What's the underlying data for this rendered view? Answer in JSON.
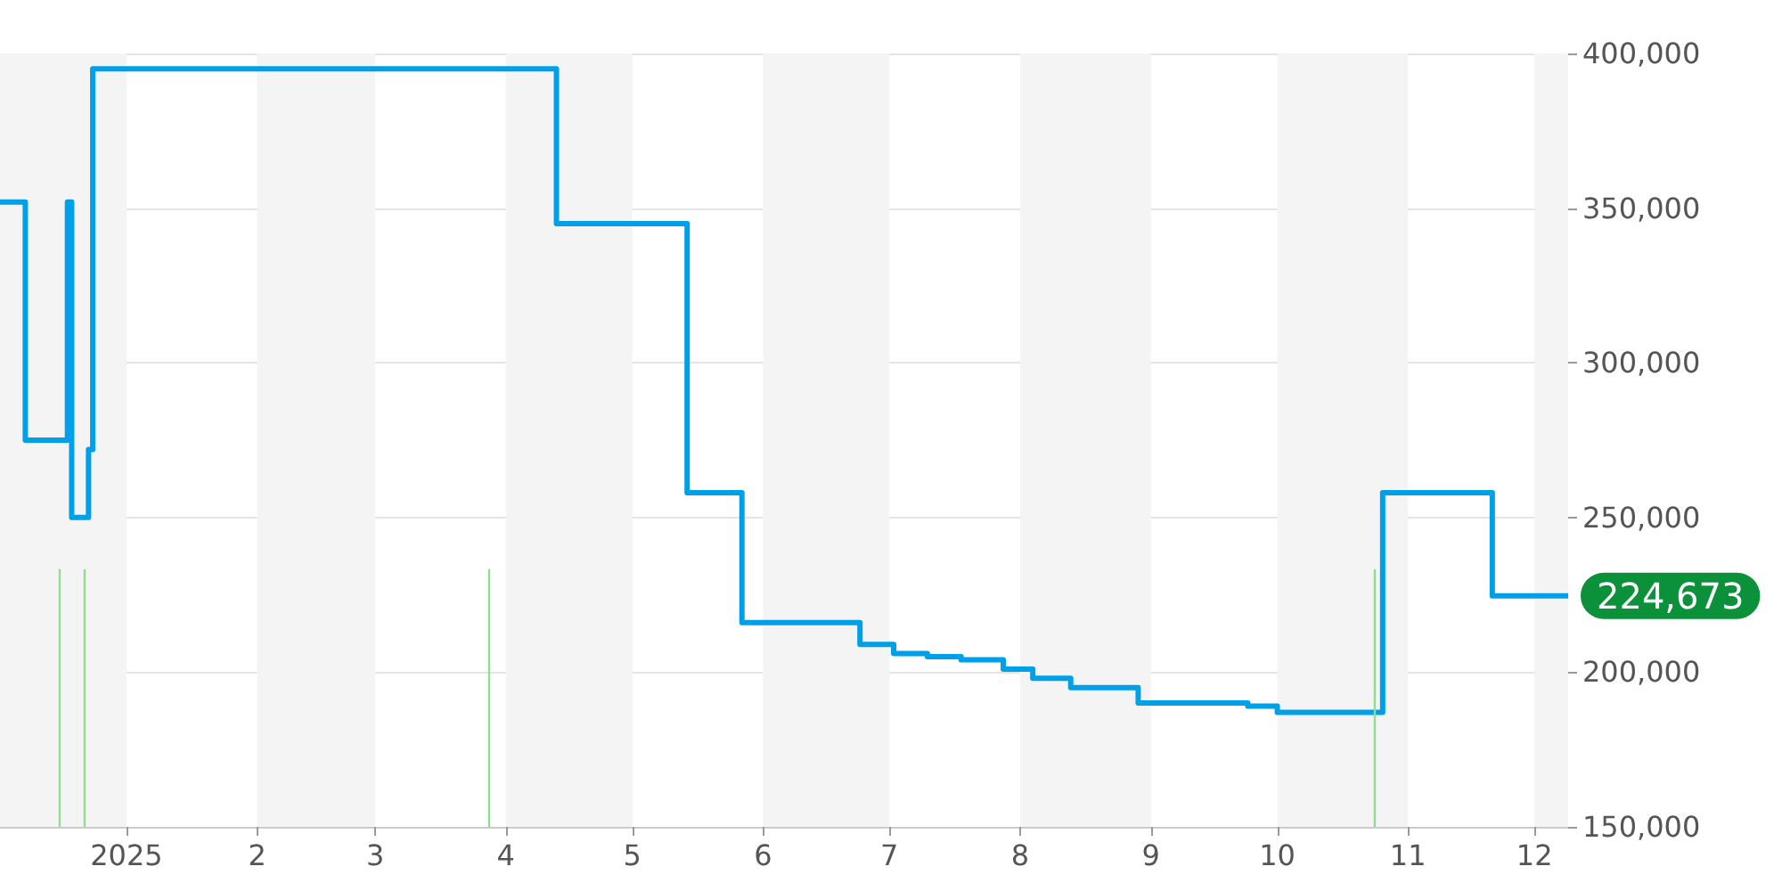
{
  "chart_data": {
    "type": "step",
    "x": [
      "2024-12-02",
      "2024-12-08",
      "2024-12-18",
      "2024-12-19",
      "2024-12-23",
      "2024-12-24",
      "2025-04-13",
      "2025-05-14",
      "2025-05-27",
      "2025-06-24",
      "2025-07-02",
      "2025-07-10",
      "2025-07-18",
      "2025-07-28",
      "2025-08-04",
      "2025-08-13",
      "2025-08-29",
      "2025-09-24",
      "2025-10-01",
      "2025-10-26",
      "2025-11-21",
      "2025-12-09"
    ],
    "series": [
      {
        "color": "#00a0e9",
        "values": [
          352000,
          275000,
          352000,
          250000,
          272000,
          395000,
          345000,
          258000,
          216000,
          209000,
          206000,
          205000,
          204000,
          201000,
          198000,
          195000,
          190000,
          189000,
          187000,
          258000,
          224673,
          224673
        ]
      }
    ],
    "ref_lines": [
      {
        "axis": "x",
        "value": "2024-12-16",
        "color": "#90dd90"
      },
      {
        "axis": "x",
        "value": "2024-12-22",
        "color": "#90dd90"
      },
      {
        "axis": "x",
        "value": "2025-03-28",
        "color": "#90dd90"
      },
      {
        "axis": "x",
        "value": "2025-10-24",
        "color": "#90dd90"
      }
    ],
    "xlim": [
      "2024-12-02",
      "2025-12-09"
    ],
    "xticks": [
      {
        "value": "2025-01-01",
        "label": "2025"
      },
      {
        "value": "2025-02-01",
        "label": "2"
      },
      {
        "value": "2025-03-01",
        "label": "3"
      },
      {
        "value": "2025-04-01",
        "label": "4"
      },
      {
        "value": "2025-05-01",
        "label": "5"
      },
      {
        "value": "2025-06-01",
        "label": "6"
      },
      {
        "value": "2025-07-01",
        "label": "7"
      },
      {
        "value": "2025-08-01",
        "label": "8"
      },
      {
        "value": "2025-09-01",
        "label": "9"
      },
      {
        "value": "2025-10-01",
        "label": "10"
      },
      {
        "value": "2025-11-01",
        "label": "11"
      },
      {
        "value": "2025-12-01",
        "label": "12"
      }
    ],
    "ylim": [
      150000,
      400000
    ],
    "yticks": [
      {
        "value": 150000,
        "label": "150,000"
      },
      {
        "value": 200000,
        "label": "200,000"
      },
      {
        "value": 250000,
        "label": "250,000"
      },
      {
        "value": 300000,
        "label": "300,000"
      },
      {
        "value": 350000,
        "label": "350,000"
      },
      {
        "value": 400000,
        "label": "400,000"
      }
    ],
    "bands": [
      {
        "axis": "x",
        "from": "2024-12-02",
        "to": "2025-01-01",
        "color": "#f4f4f4"
      },
      {
        "axis": "x",
        "from": "2025-02-01",
        "to": "2025-03-01",
        "color": "#f4f4f4"
      },
      {
        "axis": "x",
        "from": "2025-04-01",
        "to": "2025-05-01",
        "color": "#f4f4f4"
      },
      {
        "axis": "x",
        "from": "2025-06-01",
        "to": "2025-07-01",
        "color": "#f4f4f4"
      },
      {
        "axis": "x",
        "from": "2025-08-01",
        "to": "2025-09-01",
        "color": "#f4f4f4"
      },
      {
        "axis": "x",
        "from": "2025-10-01",
        "to": "2025-11-01",
        "color": "#f4f4f4"
      },
      {
        "axis": "x",
        "from": "2025-12-01",
        "to": "2025-12-09",
        "color": "#f4f4f4"
      }
    ],
    "annotations": [
      {
        "text": "224,673",
        "x": "2025-12-09",
        "y": 224673
      }
    ],
    "grid": "y"
  }
}
